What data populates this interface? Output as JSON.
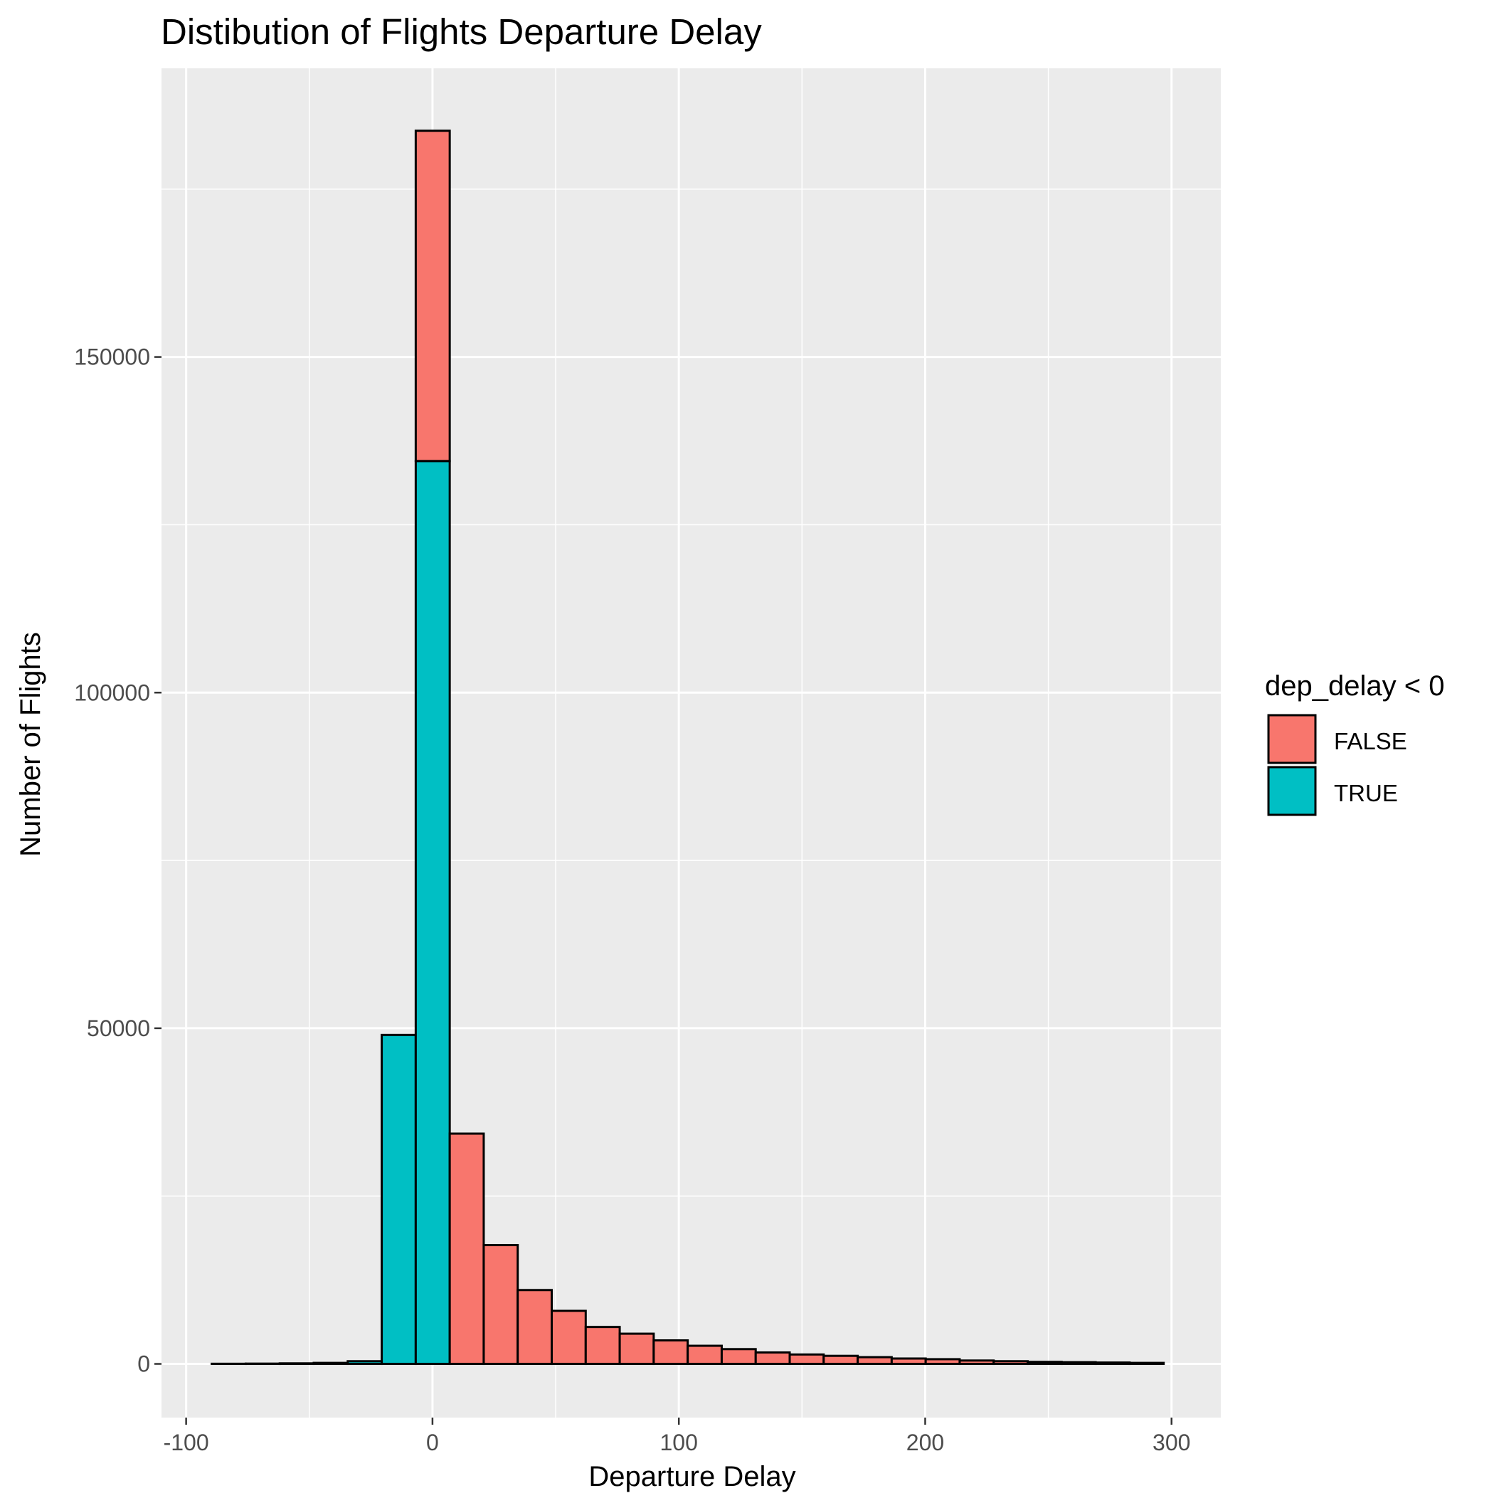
{
  "chart_data": {
    "type": "bar",
    "title": "Distibution of Flights Departure Delay",
    "xlabel": "Departure Delay",
    "ylabel": "Number of Flights",
    "xlim": [
      -110,
      320
    ],
    "ylim": [
      -8000,
      193000
    ],
    "xticks": [
      -100,
      0,
      100,
      200,
      300
    ],
    "xtick_labels": [
      "-100",
      "0",
      "100",
      "200",
      "300"
    ],
    "yticks": [
      0,
      50000,
      100000,
      150000
    ],
    "ytick_labels": [
      "0",
      "50000",
      "100000",
      "150000"
    ],
    "grid": true,
    "bin_width": 13.8,
    "bin_edges": [
      -89.6,
      -75.8,
      -62.0,
      -48.2,
      -34.4,
      -20.6,
      -6.8,
      7.0,
      20.8,
      34.6,
      48.4,
      62.2,
      76.0,
      89.8,
      103.6,
      117.4,
      131.2,
      145.0,
      158.8,
      172.6,
      186.4,
      200.2,
      214.0,
      227.8,
      241.6,
      255.4,
      269.2,
      283.0,
      296.8
    ],
    "colors": {
      "FALSE": "#F8766D",
      "TRUE": "#00BFC4",
      "panel": "#EBEBEB",
      "grid": "#FFFFFF",
      "outline": "#000000"
    },
    "legend": {
      "title": "dep_delay < 0",
      "position": "right",
      "entries": [
        "FALSE",
        "TRUE"
      ]
    },
    "series": [
      {
        "name": "TRUE",
        "values": [
          20,
          40,
          80,
          150,
          400,
          49000,
          134500,
          0,
          0,
          0,
          0,
          0,
          0,
          0,
          0,
          0,
          0,
          0,
          0,
          0,
          0,
          0,
          0,
          0,
          0,
          0,
          0,
          0
        ]
      },
      {
        "name": "FALSE",
        "values": [
          0,
          0,
          0,
          0,
          0,
          0,
          49200,
          34300,
          17700,
          11000,
          7900,
          5500,
          4500,
          3500,
          2700,
          2200,
          1700,
          1400,
          1200,
          1000,
          800,
          700,
          500,
          400,
          300,
          250,
          200,
          150
        ]
      }
    ]
  }
}
